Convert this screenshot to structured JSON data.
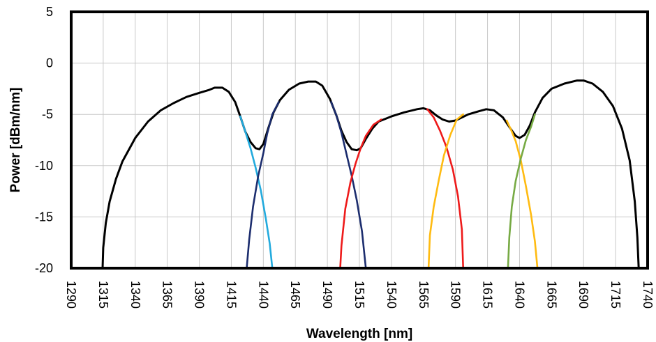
{
  "chart_data": {
    "type": "line",
    "xlabel": "Wavelength [nm]",
    "ylabel": "Power [dBm/nm]",
    "xlim": [
      1290,
      1740
    ],
    "ylim": [
      -20,
      5
    ],
    "x_ticks": [
      1290,
      1315,
      1340,
      1365,
      1390,
      1415,
      1440,
      1465,
      1490,
      1515,
      1540,
      1565,
      1590,
      1615,
      1640,
      1665,
      1690,
      1715,
      1740
    ],
    "y_ticks": [
      5,
      0,
      -5,
      -10,
      -15,
      -20
    ],
    "grid": true,
    "legend": "none",
    "series": [
      {
        "color": "#000000",
        "points": [
          [
            1314.5,
            -20
          ],
          [
            1315,
            -18
          ],
          [
            1317,
            -15.6
          ],
          [
            1320,
            -13.5
          ],
          [
            1325,
            -11.3
          ],
          [
            1330,
            -9.6
          ],
          [
            1340,
            -7.3
          ],
          [
            1350,
            -5.7
          ],
          [
            1360,
            -4.6
          ],
          [
            1370,
            -3.9
          ],
          [
            1380,
            -3.3
          ],
          [
            1390,
            -2.9
          ],
          [
            1398,
            -2.6
          ],
          [
            1402,
            -2.4
          ],
          [
            1408,
            -2.4
          ],
          [
            1413,
            -2.8
          ],
          [
            1418,
            -3.8
          ],
          [
            1422,
            -5.2
          ],
          [
            1426,
            -6.7
          ],
          [
            1430,
            -7.7
          ],
          [
            1434,
            -8.3
          ],
          [
            1437,
            -8.4
          ],
          [
            1440,
            -7.9
          ],
          [
            1444,
            -6.3
          ],
          [
            1448,
            -4.8
          ],
          [
            1453,
            -3.6
          ],
          [
            1460,
            -2.6
          ],
          [
            1468,
            -2.0
          ],
          [
            1475,
            -1.8
          ],
          [
            1481,
            -1.8
          ],
          [
            1486,
            -2.2
          ],
          [
            1492,
            -3.5
          ],
          [
            1497,
            -5.1
          ],
          [
            1501,
            -6.6
          ],
          [
            1505,
            -7.7
          ],
          [
            1509,
            -8.4
          ],
          [
            1513,
            -8.5
          ],
          [
            1516,
            -8.3
          ],
          [
            1520,
            -7.4
          ],
          [
            1525,
            -6.4
          ],
          [
            1530,
            -5.7
          ],
          [
            1540,
            -5.2
          ],
          [
            1550,
            -4.8
          ],
          [
            1560,
            -4.5
          ],
          [
            1565,
            -4.4
          ],
          [
            1570,
            -4.6
          ],
          [
            1575,
            -5.1
          ],
          [
            1580,
            -5.5
          ],
          [
            1585,
            -5.7
          ],
          [
            1590,
            -5.6
          ],
          [
            1595,
            -5.3
          ],
          [
            1600,
            -5.0
          ],
          [
            1608,
            -4.7
          ],
          [
            1614,
            -4.5
          ],
          [
            1620,
            -4.6
          ],
          [
            1627,
            -5.3
          ],
          [
            1633,
            -6.4
          ],
          [
            1637,
            -7.1
          ],
          [
            1640,
            -7.3
          ],
          [
            1644,
            -7.0
          ],
          [
            1648,
            -6.1
          ],
          [
            1652,
            -4.8
          ],
          [
            1658,
            -3.4
          ],
          [
            1665,
            -2.5
          ],
          [
            1675,
            -2.0
          ],
          [
            1685,
            -1.7
          ],
          [
            1690,
            -1.7
          ],
          [
            1697,
            -2.0
          ],
          [
            1705,
            -2.8
          ],
          [
            1713,
            -4.2
          ],
          [
            1720,
            -6.4
          ],
          [
            1726,
            -9.5
          ],
          [
            1730,
            -13.5
          ],
          [
            1732,
            -17.0
          ],
          [
            1733,
            -20
          ]
        ]
      },
      {
        "color": "#22aadd",
        "points": [
          [
            1422,
            -5.2
          ],
          [
            1426,
            -6.7
          ],
          [
            1430,
            -8.3
          ],
          [
            1434,
            -10.2
          ],
          [
            1438,
            -12.4
          ],
          [
            1442,
            -15.2
          ],
          [
            1445,
            -17.6
          ],
          [
            1447,
            -20
          ]
        ]
      },
      {
        "color": "#1c2d6e",
        "points": [
          [
            1427,
            -20
          ],
          [
            1429,
            -17.2
          ],
          [
            1432,
            -14.0
          ],
          [
            1436,
            -11.0
          ],
          [
            1440,
            -8.8
          ],
          [
            1443,
            -6.9
          ],
          [
            1447,
            -5.0
          ],
          [
            1452,
            -3.8
          ]
        ]
      },
      {
        "color": "#1c2d6e",
        "points": [
          [
            1493,
            -3.8
          ],
          [
            1497,
            -5.1
          ],
          [
            1501,
            -6.8
          ],
          [
            1505,
            -8.9
          ],
          [
            1509,
            -11.0
          ],
          [
            1513,
            -13.4
          ],
          [
            1517,
            -16.4
          ],
          [
            1520,
            -20
          ]
        ]
      },
      {
        "color": "#ee1a1a",
        "points": [
          [
            1500,
            -20
          ],
          [
            1501,
            -17.8
          ],
          [
            1504,
            -14.2
          ],
          [
            1508,
            -11.6
          ],
          [
            1512,
            -9.8
          ],
          [
            1516,
            -8.3
          ],
          [
            1520,
            -7.1
          ],
          [
            1526,
            -6.0
          ],
          [
            1532,
            -5.5
          ]
        ]
      },
      {
        "color": "#ee1a1a",
        "points": [
          [
            1568,
            -4.5
          ],
          [
            1573,
            -5.3
          ],
          [
            1578,
            -6.6
          ],
          [
            1583,
            -8.2
          ],
          [
            1588,
            -10.4
          ],
          [
            1592,
            -13.0
          ],
          [
            1595,
            -16.2
          ],
          [
            1596,
            -20
          ]
        ]
      },
      {
        "color": "#ffbb11",
        "points": [
          [
            1569,
            -20
          ],
          [
            1570,
            -16.8
          ],
          [
            1573,
            -14.0
          ],
          [
            1577,
            -11.4
          ],
          [
            1581,
            -9.0
          ],
          [
            1586,
            -7.0
          ],
          [
            1591,
            -5.5
          ],
          [
            1596,
            -5.0
          ]
        ]
      },
      {
        "color": "#ffbb11",
        "points": [
          [
            1630,
            -5.6
          ],
          [
            1633,
            -6.4
          ],
          [
            1637,
            -7.6
          ],
          [
            1641,
            -9.5
          ],
          [
            1645,
            -12.0
          ],
          [
            1649,
            -14.8
          ],
          [
            1652,
            -17.4
          ],
          [
            1654,
            -20
          ]
        ]
      },
      {
        "color": "#77aa44",
        "points": [
          [
            1631,
            -20
          ],
          [
            1632,
            -17.0
          ],
          [
            1634,
            -14.0
          ],
          [
            1637,
            -11.5
          ],
          [
            1641,
            -9.3
          ],
          [
            1645,
            -7.5
          ],
          [
            1649,
            -6.2
          ],
          [
            1652,
            -5.0
          ]
        ]
      }
    ]
  }
}
